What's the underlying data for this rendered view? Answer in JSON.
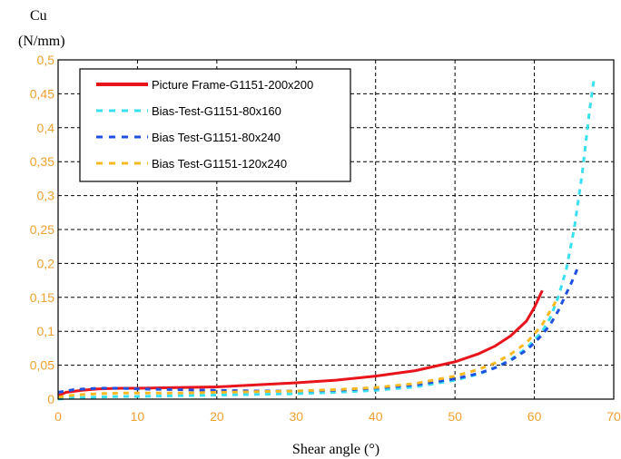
{
  "chart_data": {
    "type": "line",
    "title": "",
    "ylabel_line1": "Cu",
    "ylabel_line2": "(N/mm)",
    "xlabel": "Shear angle (°)",
    "xlim": [
      0,
      70
    ],
    "ylim": [
      0,
      0.5
    ],
    "xticks": [
      0,
      10,
      20,
      30,
      40,
      50,
      60,
      70
    ],
    "yticks": [
      0,
      0.05,
      0.1,
      0.15,
      0.2,
      0.25,
      0.3,
      0.35,
      0.4,
      0.45,
      0.5
    ],
    "xtick_labels": [
      "0",
      "10",
      "20",
      "30",
      "40",
      "50",
      "60",
      "70"
    ],
    "ytick_labels": [
      "0",
      "0,05",
      "0,1",
      "0,15",
      "0,2",
      "0,25",
      "0,3",
      "0,35",
      "0,4",
      "0,45",
      "0,5"
    ],
    "grid": true,
    "legend_position": "top-left",
    "series": [
      {
        "name": "Picture Frame-G1151-200x200",
        "color": "#e8141c",
        "style": "solid",
        "x": [
          0,
          1,
          3,
          5,
          8,
          10,
          15,
          20,
          25,
          30,
          35,
          40,
          45,
          50,
          53,
          55,
          57,
          59,
          60,
          61
        ],
        "y": [
          0.005,
          0.01,
          0.013,
          0.015,
          0.016,
          0.016,
          0.017,
          0.018,
          0.021,
          0.024,
          0.028,
          0.034,
          0.042,
          0.055,
          0.067,
          0.078,
          0.093,
          0.115,
          0.135,
          0.16
        ]
      },
      {
        "name": "Bias-Test-G1151-80x160",
        "color": "#38e0f0",
        "style": "dash",
        "x": [
          0,
          2,
          5,
          8,
          10,
          15,
          20,
          25,
          30,
          35,
          40,
          45,
          50,
          53,
          55,
          57,
          59,
          60,
          61,
          62,
          63,
          64,
          65,
          66,
          66.5,
          67,
          67.5
        ],
        "y": [
          0.0,
          0.002,
          0.003,
          0.004,
          0.004,
          0.005,
          0.006,
          0.007,
          0.008,
          0.01,
          0.013,
          0.018,
          0.028,
          0.037,
          0.046,
          0.058,
          0.075,
          0.087,
          0.1,
          0.12,
          0.15,
          0.19,
          0.25,
          0.33,
          0.38,
          0.43,
          0.47
        ]
      },
      {
        "name": "Bias Test-G1151-80x240",
        "color": "#2050e0",
        "style": "dash",
        "x": [
          0,
          2,
          5,
          8,
          10,
          15,
          20,
          25,
          30,
          35,
          40,
          45,
          50,
          53,
          55,
          57,
          59,
          60,
          61,
          62,
          63,
          64,
          65,
          65.5
        ],
        "y": [
          0.01,
          0.014,
          0.016,
          0.016,
          0.015,
          0.014,
          0.013,
          0.012,
          0.012,
          0.013,
          0.016,
          0.021,
          0.03,
          0.038,
          0.046,
          0.057,
          0.072,
          0.083,
          0.095,
          0.11,
          0.13,
          0.155,
          0.18,
          0.195
        ]
      },
      {
        "name": "Bias Test-G1151-120x240",
        "color": "#f8b820",
        "style": "dash",
        "x": [
          0,
          2,
          5,
          8,
          10,
          15,
          20,
          25,
          30,
          35,
          40,
          45,
          50,
          53,
          55,
          57,
          59,
          60,
          61,
          62,
          63
        ],
        "y": [
          0.003,
          0.006,
          0.008,
          0.009,
          0.009,
          0.009,
          0.01,
          0.011,
          0.012,
          0.014,
          0.017,
          0.023,
          0.034,
          0.044,
          0.053,
          0.066,
          0.083,
          0.096,
          0.11,
          0.13,
          0.15
        ]
      }
    ]
  }
}
